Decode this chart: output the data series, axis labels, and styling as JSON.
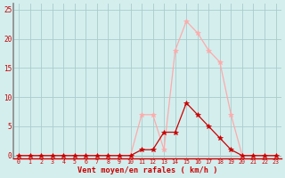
{
  "x": [
    0,
    1,
    2,
    3,
    4,
    5,
    6,
    7,
    8,
    9,
    10,
    11,
    12,
    13,
    14,
    15,
    16,
    17,
    18,
    19,
    20,
    21,
    22,
    23
  ],
  "rafales": [
    0,
    0,
    0,
    0,
    0,
    0,
    0,
    0,
    0,
    0,
    0,
    7,
    7,
    1,
    18,
    23,
    21,
    18,
    16,
    7,
    0,
    0,
    0,
    0
  ],
  "moyen": [
    0,
    0,
    0,
    0,
    0,
    0,
    0,
    0,
    0,
    0,
    0,
    1,
    1,
    4,
    4,
    9,
    7,
    5,
    3,
    1,
    0,
    0,
    0,
    0
  ],
  "rafales_color": "#ffaaaa",
  "moyen_color": "#cc0000",
  "bg_color": "#d4eeee",
  "grid_color": "#aacccc",
  "xlabel": "Vent moyen/en rafales ( km/h )",
  "xlabel_color": "#cc0000",
  "spine_color": "#888888",
  "yticks": [
    0,
    5,
    10,
    15,
    20,
    25
  ],
  "ylim": [
    -0.5,
    26
  ],
  "xlim": [
    -0.5,
    23.5
  ]
}
